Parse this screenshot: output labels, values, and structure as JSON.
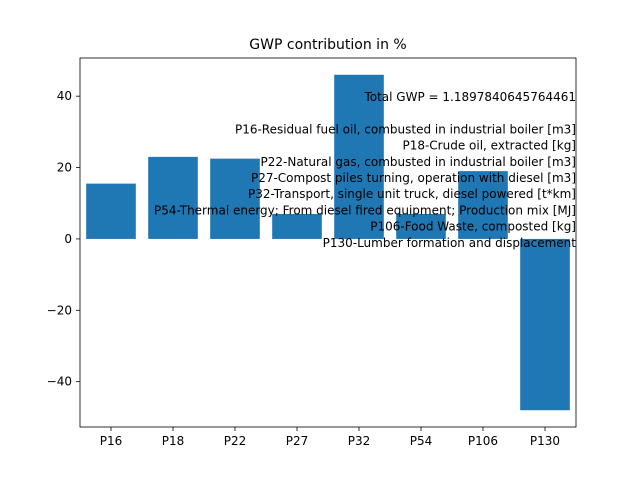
{
  "chart_data": {
    "type": "bar",
    "title": "GWP contribution in %",
    "xlabel": "",
    "ylabel": "",
    "categories": [
      "P16",
      "P18",
      "P22",
      "P27",
      "P32",
      "P54",
      "P106",
      "P130"
    ],
    "values": [
      15.5,
      23.0,
      22.5,
      7.0,
      46.0,
      7.0,
      19.0,
      -48.0
    ],
    "ylim": [
      -52.7,
      50.7
    ],
    "yticks": [
      -40,
      -20,
      0,
      20,
      40
    ],
    "ytick_labels": [
      "−40",
      "−20",
      "0",
      "20",
      "40"
    ],
    "bar_color": "#1f77b4",
    "grid": false,
    "annotations": [
      "Total GWP = 1.1897840645764461",
      "",
      "P16-Residual fuel oil, combusted in industrial boiler [m3]",
      "P18-Crude oil, extracted [kg]",
      "P22-Natural gas, combusted in industrial boiler [m3]",
      "P27-Compost piles turning, operation with diesel [m3]",
      "P32-Transport, single unit truck, diesel powered [t*km]",
      "P54-Thermal energy; From diesel fired equipment; Production mix [MJ]",
      "P106-Food Waste, composted [kg]",
      "P130-Lumber formation and displacement"
    ]
  }
}
